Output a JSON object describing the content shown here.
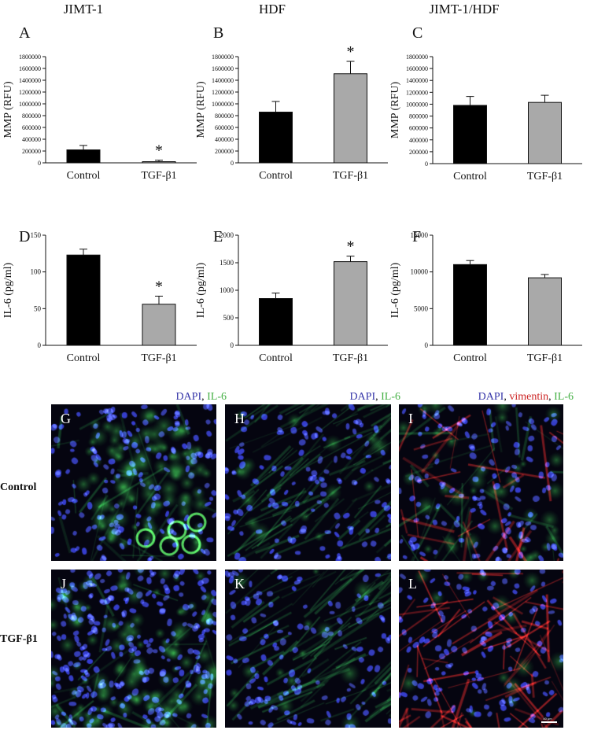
{
  "columns": [
    "JIMT-1",
    "HDF",
    "JIMT-1/HDF"
  ],
  "chart_data": [
    {
      "panel": "A",
      "type": "bar",
      "categories": [
        "Control",
        "TGF-β1"
      ],
      "values": [
        220000,
        20000
      ],
      "errors": [
        75000,
        25000
      ],
      "ylabel": "MMP (RFU)",
      "ylim": [
        0,
        1800000
      ],
      "yticks": [
        "0",
        "200000",
        "400000",
        "600000",
        "800000",
        "1000000",
        "1200000",
        "1400000",
        "1600000",
        "1800000"
      ],
      "significant": [
        false,
        true
      ],
      "colors": [
        "#000000",
        "#a9a9a9"
      ]
    },
    {
      "panel": "B",
      "type": "bar",
      "categories": [
        "Control",
        "TGF-β1"
      ],
      "values": [
        860000,
        1510000
      ],
      "errors": [
        180000,
        210000
      ],
      "ylabel": "MMP (RFU)",
      "ylim": [
        0,
        1800000
      ],
      "yticks": [
        "0",
        "200000",
        "400000",
        "600000",
        "800000",
        "1000000",
        "1200000",
        "1400000",
        "1600000",
        "1800000"
      ],
      "significant": [
        false,
        true
      ],
      "colors": [
        "#000000",
        "#a9a9a9"
      ]
    },
    {
      "panel": "C",
      "type": "bar",
      "categories": [
        "Control",
        "TGF-β1"
      ],
      "values": [
        980000,
        1030000
      ],
      "errors": [
        150000,
        120000
      ],
      "ylabel": "MMP (RFU)",
      "ylim": [
        0,
        1800000
      ],
      "yticks": [
        "0",
        "200000",
        "400000",
        "600000",
        "800000",
        "1000000",
        "1200000",
        "1400000",
        "1600000",
        "1800000"
      ],
      "significant": [
        false,
        false
      ],
      "colors": [
        "#000000",
        "#a9a9a9"
      ]
    },
    {
      "panel": "D",
      "type": "bar",
      "categories": [
        "Control",
        "TGF-β1"
      ],
      "values": [
        123,
        56
      ],
      "errors": [
        8,
        11
      ],
      "ylabel": "IL-6 (pg/ml)",
      "ylim": [
        0,
        150
      ],
      "yticks": [
        "0",
        "50",
        "100",
        "150"
      ],
      "significant": [
        false,
        true
      ],
      "colors": [
        "#000000",
        "#a9a9a9"
      ]
    },
    {
      "panel": "E",
      "type": "bar",
      "categories": [
        "Control",
        "TGF-β1"
      ],
      "values": [
        850,
        1520
      ],
      "errors": [
        100,
        100
      ],
      "ylabel": "IL-6 (pg/ml)",
      "ylim": [
        0,
        2000
      ],
      "yticks": [
        "0",
        "500",
        "1000",
        "1500",
        "2000"
      ],
      "significant": [
        false,
        true
      ],
      "colors": [
        "#000000",
        "#a9a9a9"
      ]
    },
    {
      "panel": "F",
      "type": "bar",
      "categories": [
        "Control",
        "TGF-β1"
      ],
      "values": [
        11000,
        9200
      ],
      "errors": [
        550,
        450
      ],
      "ylabel": "IL-6 (pg/ml)",
      "ylim": [
        0,
        15000
      ],
      "yticks": [
        "0",
        "5000",
        "10000",
        "15000"
      ],
      "significant": [
        false,
        false
      ],
      "colors": [
        "#000000",
        "#a9a9a9"
      ]
    }
  ],
  "significance_marker": "*",
  "stain_labels": [
    {
      "parts": [
        {
          "t": "DAPI",
          "c": "blue"
        },
        {
          "t": ", ",
          "c": "sep"
        },
        {
          "t": "IL-6",
          "c": "green"
        }
      ]
    },
    {
      "parts": [
        {
          "t": "DAPI",
          "c": "blue"
        },
        {
          "t": ", ",
          "c": "sep"
        },
        {
          "t": "IL-6",
          "c": "green"
        }
      ]
    },
    {
      "parts": [
        {
          "t": "DAPI",
          "c": "blue"
        },
        {
          "t": ", ",
          "c": "sep"
        },
        {
          "t": "vimentin",
          "c": "red"
        },
        {
          "t": ", ",
          "c": "sep"
        },
        {
          "t": "IL-6",
          "c": "green"
        }
      ]
    }
  ],
  "rows": [
    "Control",
    "TGF-β1"
  ],
  "micrographs": [
    {
      "letter": "G",
      "channels": [
        "blue",
        "green"
      ],
      "pattern": "cluster"
    },
    {
      "letter": "H",
      "channels": [
        "blue",
        "green"
      ],
      "pattern": "fibers"
    },
    {
      "letter": "I",
      "channels": [
        "blue",
        "green",
        "red"
      ],
      "pattern": "mixed"
    },
    {
      "letter": "J",
      "channels": [
        "blue",
        "green"
      ],
      "pattern": "dense"
    },
    {
      "letter": "K",
      "channels": [
        "blue",
        "green"
      ],
      "pattern": "fibers"
    },
    {
      "letter": "L",
      "channels": [
        "blue",
        "green",
        "red"
      ],
      "pattern": "redfibers"
    }
  ],
  "scale_bar_label": "50 μm"
}
